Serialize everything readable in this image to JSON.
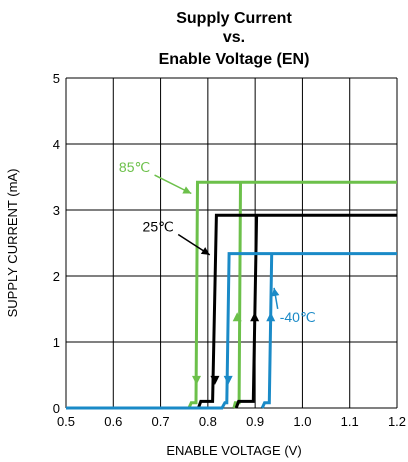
{
  "chart_data": {
    "type": "line",
    "title_lines": [
      "Supply Current",
      "vs.",
      "Enable Voltage (EN)"
    ],
    "xlabel": "ENABLE VOLTAGE (V)",
    "ylabel": "SUPPLY CURRENT (mA)",
    "xlim": [
      0.5,
      1.2
    ],
    "ylim": [
      0,
      5
    ],
    "x_ticks": [
      "0.5",
      "0.6",
      "0.7",
      "0.8",
      "0.9",
      "1.0",
      "1.1",
      "1.2"
    ],
    "y_ticks": [
      "0",
      "1",
      "2",
      "3",
      "4",
      "5"
    ],
    "grid": true,
    "series": [
      {
        "name": "85℃",
        "color": "#6cc04a",
        "points": [
          [
            0.5,
            0.0
          ],
          [
            0.76,
            0.0
          ],
          [
            0.765,
            0.08
          ],
          [
            0.775,
            0.08
          ],
          [
            0.778,
            3.42
          ],
          [
            1.2,
            3.42
          ],
          [
            0.869,
            3.42
          ],
          [
            0.866,
            0.08
          ],
          [
            0.858,
            0.08
          ],
          [
            0.855,
            0.0
          ]
        ],
        "arrows": [
          {
            "x": 0.776,
            "dir": "down"
          },
          {
            "x": 0.862,
            "dir": "up"
          }
        ]
      },
      {
        "name": "25℃",
        "color": "#000000",
        "points": [
          [
            0.5,
            0.0
          ],
          [
            0.78,
            0.0
          ],
          [
            0.785,
            0.1
          ],
          [
            0.81,
            0.1
          ],
          [
            0.818,
            2.92
          ],
          [
            1.2,
            2.92
          ],
          [
            0.903,
            2.92
          ],
          [
            0.896,
            0.1
          ],
          [
            0.865,
            0.1
          ],
          [
            0.86,
            0.0
          ]
        ],
        "arrows": [
          {
            "x": 0.815,
            "dir": "down"
          },
          {
            "x": 0.899,
            "dir": "up"
          }
        ]
      },
      {
        "name": "-40℃",
        "color": "#1a8ac7",
        "points": [
          [
            0.5,
            0.0
          ],
          [
            0.83,
            0.0
          ],
          [
            0.836,
            0.08
          ],
          [
            0.84,
            0.08
          ],
          [
            0.845,
            2.34
          ],
          [
            1.2,
            2.34
          ],
          [
            0.935,
            2.34
          ],
          [
            0.93,
            0.08
          ],
          [
            0.92,
            0.08
          ],
          [
            0.915,
            0.0
          ]
        ],
        "arrows": [
          {
            "x": 0.843,
            "dir": "down"
          },
          {
            "x": 0.933,
            "dir": "up"
          }
        ]
      }
    ],
    "annotations": [
      {
        "text": "85℃",
        "color": "#6cc04a",
        "x": 0.645,
        "y": 3.65,
        "arrow_to": [
          0.765,
          3.25
        ]
      },
      {
        "text": "25℃",
        "color": "#000000",
        "x": 0.695,
        "y": 2.75,
        "arrow_to": [
          0.804,
          2.32
        ]
      },
      {
        "text": "-40℃",
        "color": "#1a8ac7",
        "x": 0.99,
        "y": 1.38,
        "arrow_to": [
          0.94,
          1.82
        ]
      }
    ]
  }
}
